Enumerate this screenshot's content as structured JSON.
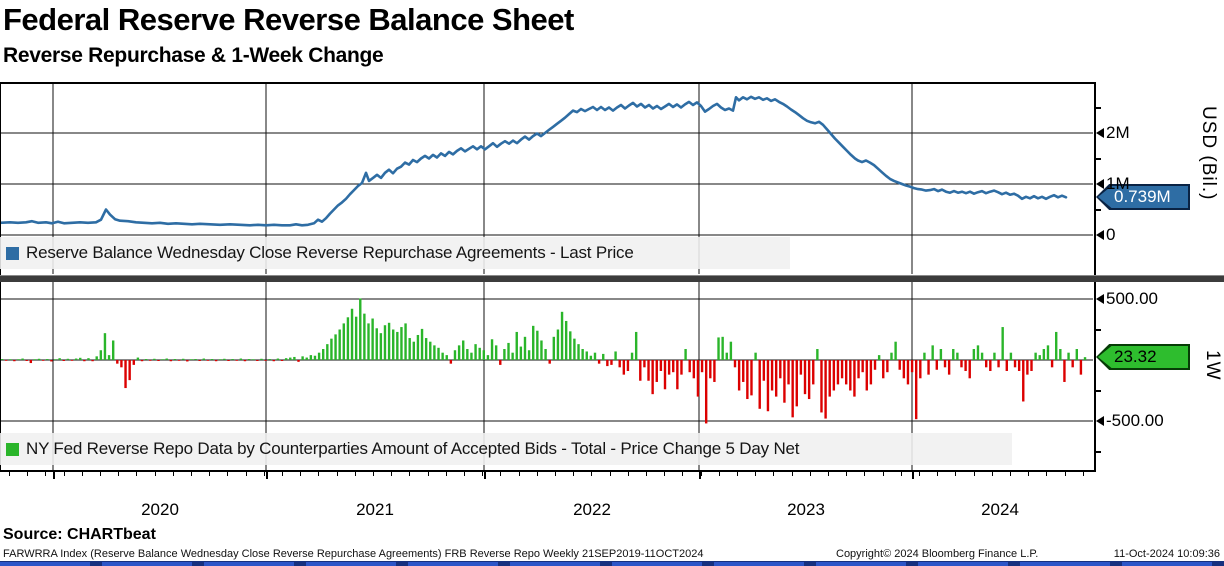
{
  "header": {
    "title": "Federal Reserve Reverse Balance Sheet",
    "subtitle": "Reverse Repurchase & 1-Week Change"
  },
  "top_panel": {
    "legend_label": "Reserve Balance Wednesday Close Reverse Repurchase Agreements - Last Price",
    "axis_label": "USD (Bil.)",
    "badge_value": "0.739M",
    "major_ticks": [
      {
        "label": "2M",
        "value": 2
      },
      {
        "label": "1M",
        "value": 1
      },
      {
        "label": "0",
        "value": 0
      }
    ],
    "minor_tick_values": [
      2.5,
      1.5,
      0.5
    ],
    "line_color": "#2e6da4",
    "badge_color": "#2e6da4"
  },
  "bottom_panel": {
    "legend_label": "NY Fed Reverse Repo Data by Counterparties Amount of Accepted Bids - Total - Price Change 5 Day Net",
    "axis_label": "1W",
    "badge_value": "23.32",
    "major_ticks": [
      {
        "label": "500.00",
        "value": 500
      },
      {
        "label": "-500.00",
        "value": -500
      }
    ],
    "minor_tick_values": [
      250,
      -250,
      -750
    ],
    "up_color": "#2ab52a",
    "down_color": "#dc0000",
    "badge_color": "#2ebd2e"
  },
  "x_axis": {
    "years": [
      "2020",
      "2021",
      "2022",
      "2023",
      "2024"
    ]
  },
  "source": "Source: CHARTbeat",
  "footer": {
    "left": "FARWRRA Index (Reserve Balance Wednesday Close Reverse Repurchase Agreements) FRB Reverse Repo  Weekly 21SEP2019-11OCT2024",
    "copyright": "Copyright© 2024 Bloomberg Finance L.P.",
    "timestamp": "11-Oct-2024 10:09:36"
  },
  "chart_data": [
    {
      "type": "line",
      "title": "Reserve Balance Wednesday Close Reverse Repurchase Agreements - Last Price",
      "ylabel": "USD (Bil.)",
      "yticks": [
        "2M",
        "1M",
        "0"
      ],
      "ylim": [
        -0.78,
        3.0
      ],
      "x_range": "21SEP2019-11OCT2024",
      "last_price": "0.739M",
      "points": [
        [
          0,
          0.24
        ],
        [
          10,
          0.25
        ],
        [
          18,
          0.24
        ],
        [
          26,
          0.25
        ],
        [
          32,
          0.27
        ],
        [
          38,
          0.24
        ],
        [
          46,
          0.25
        ],
        [
          52,
          0.23
        ],
        [
          58,
          0.26
        ],
        [
          64,
          0.23
        ],
        [
          72,
          0.24
        ],
        [
          80,
          0.25
        ],
        [
          88,
          0.24
        ],
        [
          96,
          0.25
        ],
        [
          101,
          0.3
        ],
        [
          106,
          0.5
        ],
        [
          110,
          0.4
        ],
        [
          115,
          0.31
        ],
        [
          120,
          0.28
        ],
        [
          128,
          0.27
        ],
        [
          136,
          0.25
        ],
        [
          144,
          0.24
        ],
        [
          152,
          0.23
        ],
        [
          160,
          0.24
        ],
        [
          168,
          0.22
        ],
        [
          176,
          0.23
        ],
        [
          184,
          0.22
        ],
        [
          192,
          0.21
        ],
        [
          200,
          0.22
        ],
        [
          210,
          0.21
        ],
        [
          220,
          0.2
        ],
        [
          230,
          0.21
        ],
        [
          240,
          0.2
        ],
        [
          250,
          0.19
        ],
        [
          258,
          0.2
        ],
        [
          266,
          0.19
        ],
        [
          274,
          0.2
        ],
        [
          282,
          0.19
        ],
        [
          290,
          0.19
        ],
        [
          296,
          0.21
        ],
        [
          302,
          0.19
        ],
        [
          308,
          0.2
        ],
        [
          314,
          0.23
        ],
        [
          318,
          0.3
        ],
        [
          322,
          0.26
        ],
        [
          326,
          0.33
        ],
        [
          330,
          0.42
        ],
        [
          334,
          0.5
        ],
        [
          338,
          0.58
        ],
        [
          342,
          0.64
        ],
        [
          346,
          0.71
        ],
        [
          350,
          0.8
        ],
        [
          354,
          0.88
        ],
        [
          358,
          0.96
        ],
        [
          362,
          1.02
        ],
        [
          366,
          1.22
        ],
        [
          369,
          1.06
        ],
        [
          373,
          1.12
        ],
        [
          377,
          1.18
        ],
        [
          381,
          1.12
        ],
        [
          385,
          1.22
        ],
        [
          389,
          1.28
        ],
        [
          393,
          1.21
        ],
        [
          397,
          1.3
        ],
        [
          401,
          1.34
        ],
        [
          405,
          1.42
        ],
        [
          409,
          1.38
        ],
        [
          413,
          1.47
        ],
        [
          417,
          1.43
        ],
        [
          421,
          1.5
        ],
        [
          425,
          1.55
        ],
        [
          429,
          1.5
        ],
        [
          433,
          1.57
        ],
        [
          437,
          1.52
        ],
        [
          441,
          1.6
        ],
        [
          445,
          1.55
        ],
        [
          449,
          1.63
        ],
        [
          453,
          1.58
        ],
        [
          457,
          1.65
        ],
        [
          461,
          1.7
        ],
        [
          465,
          1.64
        ],
        [
          469,
          1.69
        ],
        [
          473,
          1.74
        ],
        [
          477,
          1.68
        ],
        [
          481,
          1.74
        ],
        [
          485,
          1.68
        ],
        [
          489,
          1.74
        ],
        [
          493,
          1.8
        ],
        [
          497,
          1.73
        ],
        [
          501,
          1.79
        ],
        [
          505,
          1.84
        ],
        [
          509,
          1.79
        ],
        [
          513,
          1.85
        ],
        [
          517,
          1.8
        ],
        [
          521,
          1.87
        ],
        [
          525,
          1.93
        ],
        [
          529,
          1.87
        ],
        [
          533,
          1.94
        ],
        [
          537,
          1.99
        ],
        [
          541,
          1.94
        ],
        [
          545,
          2.0
        ],
        [
          549,
          2.06
        ],
        [
          553,
          2.12
        ],
        [
          557,
          2.18
        ],
        [
          561,
          2.24
        ],
        [
          565,
          2.3
        ],
        [
          569,
          2.37
        ],
        [
          573,
          2.44
        ],
        [
          577,
          2.41
        ],
        [
          581,
          2.47
        ],
        [
          585,
          2.43
        ],
        [
          589,
          2.47
        ],
        [
          593,
          2.51
        ],
        [
          597,
          2.45
        ],
        [
          601,
          2.51
        ],
        [
          605,
          2.45
        ],
        [
          609,
          2.5
        ],
        [
          613,
          2.44
        ],
        [
          617,
          2.5
        ],
        [
          621,
          2.55
        ],
        [
          625,
          2.48
        ],
        [
          629,
          2.54
        ],
        [
          633,
          2.59
        ],
        [
          637,
          2.52
        ],
        [
          641,
          2.57
        ],
        [
          645,
          2.5
        ],
        [
          649,
          2.55
        ],
        [
          653,
          2.48
        ],
        [
          657,
          2.53
        ],
        [
          661,
          2.47
        ],
        [
          665,
          2.52
        ],
        [
          669,
          2.57
        ],
        [
          673,
          2.51
        ],
        [
          677,
          2.56
        ],
        [
          681,
          2.5
        ],
        [
          685,
          2.56
        ],
        [
          689,
          2.61
        ],
        [
          693,
          2.55
        ],
        [
          697,
          2.6
        ],
        [
          701,
          2.53
        ],
        [
          705,
          2.42
        ],
        [
          709,
          2.47
        ],
        [
          713,
          2.53
        ],
        [
          717,
          2.57
        ],
        [
          721,
          2.5
        ],
        [
          725,
          2.45
        ],
        [
          729,
          2.48
        ],
        [
          733,
          2.44
        ],
        [
          736,
          2.7
        ],
        [
          739,
          2.64
        ],
        [
          743,
          2.7
        ],
        [
          747,
          2.66
        ],
        [
          751,
          2.71
        ],
        [
          755,
          2.67
        ],
        [
          759,
          2.7
        ],
        [
          763,
          2.65
        ],
        [
          767,
          2.68
        ],
        [
          771,
          2.63
        ],
        [
          775,
          2.66
        ],
        [
          779,
          2.61
        ],
        [
          783,
          2.57
        ],
        [
          787,
          2.52
        ],
        [
          791,
          2.46
        ],
        [
          795,
          2.41
        ],
        [
          799,
          2.35
        ],
        [
          803,
          2.29
        ],
        [
          807,
          2.24
        ],
        [
          811,
          2.21
        ],
        [
          815,
          2.19
        ],
        [
          819,
          2.22
        ],
        [
          823,
          2.16
        ],
        [
          827,
          2.07
        ],
        [
          831,
          1.98
        ],
        [
          835,
          1.89
        ],
        [
          839,
          1.81
        ],
        [
          843,
          1.73
        ],
        [
          847,
          1.65
        ],
        [
          851,
          1.57
        ],
        [
          855,
          1.5
        ],
        [
          858,
          1.46
        ],
        [
          862,
          1.43
        ],
        [
          866,
          1.46
        ],
        [
          870,
          1.42
        ],
        [
          874,
          1.37
        ],
        [
          878,
          1.3
        ],
        [
          882,
          1.23
        ],
        [
          886,
          1.16
        ],
        [
          890,
          1.1
        ],
        [
          894,
          1.06
        ],
        [
          898,
          1.03
        ],
        [
          902,
          1.0
        ],
        [
          906,
          0.97
        ],
        [
          910,
          0.95
        ],
        [
          914,
          0.92
        ],
        [
          918,
          0.9
        ],
        [
          922,
          0.89
        ],
        [
          926,
          0.87
        ],
        [
          930,
          0.88
        ],
        [
          934,
          0.9
        ],
        [
          938,
          0.86
        ],
        [
          942,
          0.89
        ],
        [
          946,
          0.85
        ],
        [
          950,
          0.83
        ],
        [
          954,
          0.86
        ],
        [
          958,
          0.83
        ],
        [
          962,
          0.85
        ],
        [
          966,
          0.82
        ],
        [
          970,
          0.85
        ],
        [
          974,
          0.81
        ],
        [
          978,
          0.84
        ],
        [
          982,
          0.86
        ],
        [
          986,
          0.82
        ],
        [
          990,
          0.85
        ],
        [
          994,
          0.87
        ],
        [
          998,
          0.84
        ],
        [
          1002,
          0.8
        ],
        [
          1006,
          0.83
        ],
        [
          1010,
          0.79
        ],
        [
          1014,
          0.81
        ],
        [
          1018,
          0.77
        ],
        [
          1022,
          0.71
        ],
        [
          1026,
          0.75
        ],
        [
          1030,
          0.72
        ],
        [
          1034,
          0.76
        ],
        [
          1038,
          0.72
        ],
        [
          1042,
          0.75
        ],
        [
          1046,
          0.71
        ],
        [
          1050,
          0.75
        ],
        [
          1054,
          0.78
        ],
        [
          1058,
          0.74
        ],
        [
          1062,
          0.77
        ],
        [
          1066,
          0.739
        ]
      ]
    },
    {
      "type": "bar",
      "title": "NY Fed Reverse Repo Data by Counterparties Amount of Accepted Bids - Total - Price Change 5 Day Net",
      "ylabel": "1W",
      "yticks": [
        500.0,
        -500.0
      ],
      "ylim": [
        -900,
        640
      ],
      "x_range": "21SEP2019-11OCT2024",
      "last_change": 23.32,
      "x_start": 2,
      "x_step": 4.118,
      "values": [
        8,
        -5,
        6,
        -10,
        5,
        12,
        -8,
        -25,
        6,
        10,
        -6,
        8,
        -12,
        5,
        15,
        -8,
        10,
        -5,
        12,
        18,
        -10,
        15,
        -10,
        30,
        80,
        220,
        40,
        160,
        -30,
        -60,
        -230,
        -165,
        -40,
        20,
        -10,
        8,
        -6,
        10,
        -8,
        6,
        12,
        -10,
        8,
        -6,
        10,
        -12,
        6,
        8,
        -8,
        12,
        -6,
        8,
        -10,
        6,
        10,
        -8,
        8,
        -6,
        12,
        -10,
        8,
        6,
        -8,
        10,
        -6,
        8,
        -10,
        12,
        -8,
        15,
        20,
        25,
        -15,
        30,
        20,
        40,
        35,
        60,
        90,
        130,
        175,
        210,
        250,
        300,
        350,
        420,
        355,
        505,
        380,
        300,
        340,
        260,
        220,
        285,
        305,
        250,
        230,
        270,
        300,
        180,
        150,
        205,
        255,
        180,
        150,
        120,
        100,
        60,
        40,
        -30,
        80,
        120,
        160,
        90,
        60,
        130,
        100,
        80,
        40,
        170,
        120,
        -40,
        90,
        140,
        60,
        230,
        110,
        190,
        80,
        280,
        240,
        160,
        90,
        -30,
        190,
        250,
        395,
        320,
        235,
        175,
        130,
        90,
        70,
        35,
        60,
        -30,
        50,
        -50,
        -40,
        70,
        -60,
        -120,
        -90,
        60,
        230,
        -170,
        -60,
        -170,
        -280,
        -180,
        -90,
        -240,
        -120,
        -100,
        -240,
        -120,
        90,
        -100,
        -150,
        -300,
        -100,
        -520,
        -150,
        -180,
        185,
        190,
        60,
        150,
        -60,
        -250,
        -180,
        -320,
        -290,
        60,
        -400,
        -170,
        -420,
        -250,
        -300,
        -150,
        -350,
        -200,
        -470,
        -380,
        -120,
        -280,
        -320,
        -200,
        90,
        -430,
        -480,
        -300,
        -250,
        -200,
        -150,
        -200,
        -250,
        -300,
        -150,
        -100,
        -250,
        -200,
        -80,
        40,
        -150,
        -100,
        60,
        150,
        -80,
        -150,
        -200,
        -100,
        -485,
        -150,
        60,
        -120,
        120,
        -80,
        90,
        -60,
        -120,
        90,
        60,
        -60,
        -90,
        -150,
        90,
        120,
        60,
        -60,
        -90,
        60,
        -60,
        270,
        -90,
        60,
        -60,
        -90,
        -340,
        -120,
        -90,
        60,
        40,
        90,
        120,
        -60,
        230,
        90,
        -180,
        60,
        -60,
        90,
        -120,
        23.32
      ]
    }
  ]
}
